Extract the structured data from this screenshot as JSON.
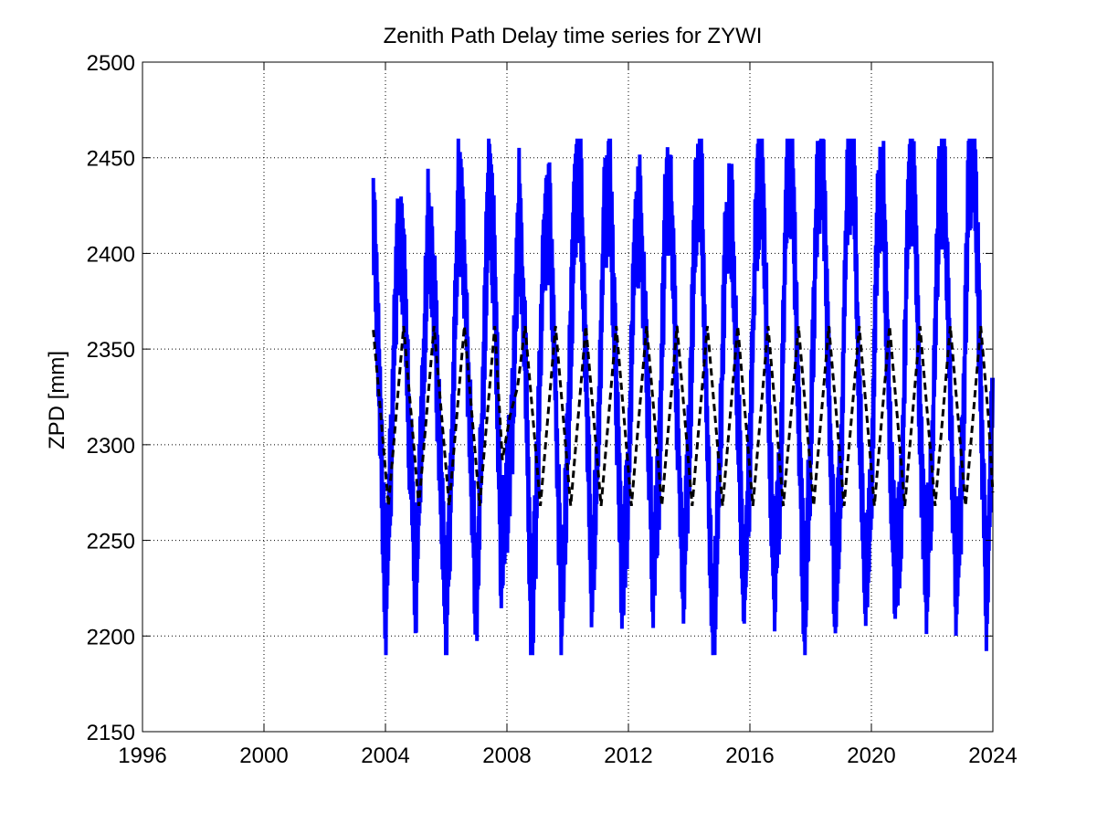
{
  "chart_data": {
    "type": "line",
    "title": "Zenith Path Delay time series for ZYWI",
    "xlabel": "",
    "ylabel": "ZPD [mm]",
    "xlim": [
      1996,
      2024
    ],
    "ylim": [
      2150,
      2500
    ],
    "x_ticks": [
      "1996",
      "2000",
      "2004",
      "2008",
      "2012",
      "2016",
      "2020",
      "2024"
    ],
    "y_ticks": [
      "2150",
      "2200",
      "2250",
      "2300",
      "2350",
      "2400",
      "2450",
      "2500"
    ],
    "grid": true,
    "grid_style": "dotted",
    "legend": "none",
    "series": [
      {
        "style": "solid",
        "color": "#0000ff",
        "x": [
          2003.6,
          2003.8,
          2004.0,
          2004.2,
          2004.4,
          2004.6,
          2004.8,
          2005.0,
          2005.2,
          2005.4,
          2005.6,
          2005.8,
          2006.0,
          2006.2,
          2006.4,
          2006.6,
          2006.8,
          2007.0,
          2007.2,
          2007.4,
          2007.6,
          2007.8,
          2008.0,
          2008.2,
          2008.4,
          2008.6,
          2008.8,
          2009.0,
          2009.2,
          2009.4,
          2009.6,
          2009.8,
          2010.0,
          2010.2,
          2010.4,
          2010.6,
          2010.8,
          2011.0,
          2011.2,
          2011.4,
          2011.6,
          2011.8,
          2012.0,
          2012.2,
          2012.4,
          2012.6,
          2012.8,
          2013.0,
          2013.2,
          2013.4,
          2013.6,
          2013.8,
          2014.0,
          2014.2,
          2014.4,
          2014.6,
          2014.8,
          2015.0,
          2015.2,
          2015.4,
          2015.6,
          2015.8,
          2016.0,
          2016.2,
          2016.4,
          2016.6,
          2016.8,
          2017.0,
          2017.2,
          2017.4,
          2017.6,
          2017.8,
          2018.0,
          2018.2,
          2018.4,
          2018.6,
          2018.8,
          2019.0,
          2019.2,
          2019.4,
          2019.6,
          2019.8,
          2020.0,
          2020.2,
          2020.4,
          2020.6,
          2020.8,
          2021.0,
          2021.2,
          2021.4,
          2021.6,
          2021.8,
          2022.0,
          2022.2,
          2022.4,
          2022.6,
          2022.8,
          2023.0,
          2023.2,
          2023.4,
          2023.6,
          2023.8,
          2024.0
        ],
        "y": [
          2428,
          2330,
          2215,
          2300,
          2408,
          2390,
          2300,
          2228,
          2310,
          2420,
          2380,
          2290,
          2207,
          2300,
          2434,
          2395,
          2300,
          2215,
          2320,
          2440,
          2390,
          2240,
          2270,
          2320,
          2422,
          2350,
          2200,
          2280,
          2405,
          2420,
          2330,
          2205,
          2300,
          2410,
          2450,
          2340,
          2222,
          2300,
          2420,
          2430,
          2330,
          2223,
          2280,
          2405,
          2420,
          2340,
          2228,
          2280,
          2415,
          2430,
          2320,
          2230,
          2300,
          2420,
          2440,
          2300,
          2193,
          2290,
          2405,
          2420,
          2320,
          2225,
          2290,
          2420,
          2440,
          2330,
          2225,
          2280,
          2430,
          2440,
          2320,
          2208,
          2300,
          2430,
          2457,
          2330,
          2220,
          2290,
          2430,
          2453,
          2320,
          2225,
          2280,
          2420,
          2425,
          2310,
          2228,
          2270,
          2420,
          2445,
          2310,
          2230,
          2290,
          2420,
          2445,
          2320,
          2225,
          2290,
          2440,
          2453,
          2330,
          2213,
          2335
        ]
      },
      {
        "style": "dashed",
        "color": "#000000",
        "x": [
          2003.6,
          2003.85,
          2004.1,
          2004.35,
          2004.6,
          2004.85,
          2005.1,
          2005.35,
          2005.6,
          2005.85,
          2006.1,
          2006.35,
          2006.6,
          2006.85,
          2007.1,
          2007.35,
          2007.6,
          2007.85,
          2008.1,
          2008.35,
          2008.6,
          2008.85,
          2009.1,
          2009.35,
          2009.6,
          2009.85,
          2010.1,
          2010.35,
          2010.6,
          2010.85,
          2011.1,
          2011.35,
          2011.6,
          2011.85,
          2012.1,
          2012.35,
          2012.6,
          2012.85,
          2013.1,
          2013.35,
          2013.6,
          2013.85,
          2014.1,
          2014.35,
          2014.6,
          2014.85,
          2015.1,
          2015.35,
          2015.6,
          2015.85,
          2016.1,
          2016.35,
          2016.6,
          2016.85,
          2017.1,
          2017.35,
          2017.6,
          2017.85,
          2018.1,
          2018.35,
          2018.6,
          2018.85,
          2019.1,
          2019.35,
          2019.6,
          2019.85,
          2020.1,
          2020.35,
          2020.6,
          2020.85,
          2021.1,
          2021.35,
          2021.6,
          2021.85,
          2022.1,
          2022.35,
          2022.6,
          2022.85,
          2023.1,
          2023.35,
          2023.6,
          2023.85,
          2024.0
        ],
        "y": [
          2360,
          2315,
          2268,
          2315,
          2362,
          2315,
          2268,
          2315,
          2362,
          2315,
          2268,
          2315,
          2362,
          2315,
          2268,
          2315,
          2362,
          2292,
          2315,
          2330,
          2362,
          2315,
          2268,
          2315,
          2362,
          2315,
          2268,
          2315,
          2362,
          2315,
          2268,
          2315,
          2362,
          2315,
          2268,
          2315,
          2362,
          2315,
          2268,
          2315,
          2362,
          2315,
          2268,
          2315,
          2362,
          2315,
          2268,
          2315,
          2362,
          2315,
          2268,
          2315,
          2362,
          2315,
          2268,
          2315,
          2362,
          2315,
          2268,
          2315,
          2362,
          2315,
          2268,
          2315,
          2362,
          2315,
          2268,
          2315,
          2362,
          2315,
          2268,
          2315,
          2362,
          2315,
          2268,
          2315,
          2362,
          2315,
          2268,
          2315,
          2362,
          2315,
          2275
        ]
      }
    ]
  }
}
